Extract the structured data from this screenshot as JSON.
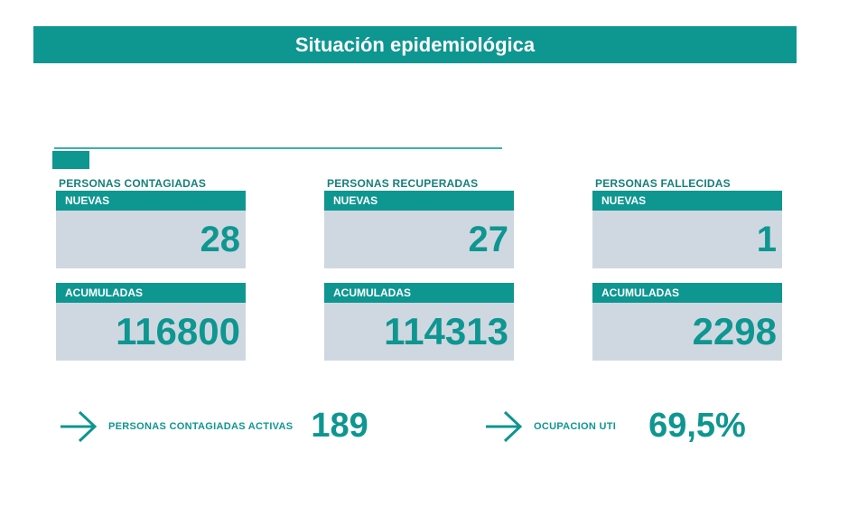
{
  "title": "Situación epidemiológica",
  "groups": [
    {
      "label": "PERSONAS CONTAGIADAS",
      "nuevas_label": "NUEVAS",
      "nuevas_value": "28",
      "acumuladas_label": "ACUMULADAS",
      "acumuladas_value": "116800"
    },
    {
      "label": "PERSONAS RECUPERADAS",
      "nuevas_label": "NUEVAS",
      "nuevas_value": "27",
      "acumuladas_label": "ACUMULADAS",
      "acumuladas_value": "114313"
    },
    {
      "label": "PERSONAS FALLECIDAS",
      "nuevas_label": "NUEVAS",
      "nuevas_value": "1",
      "acumuladas_label": "ACUMULADAS",
      "acumuladas_value": "2298"
    }
  ],
  "activas": {
    "label": "PERSONAS CONTAGIADAS ACTIVAS",
    "value": "189",
    "icon": "arrow-right-icon"
  },
  "uti": {
    "label": "OCUPACION UTI",
    "value": "69,5%",
    "icon": "arrow-right-icon"
  },
  "colors": {
    "accent": "#0e9691",
    "card_bg": "#cfd8e1",
    "label": "#167f7c"
  }
}
